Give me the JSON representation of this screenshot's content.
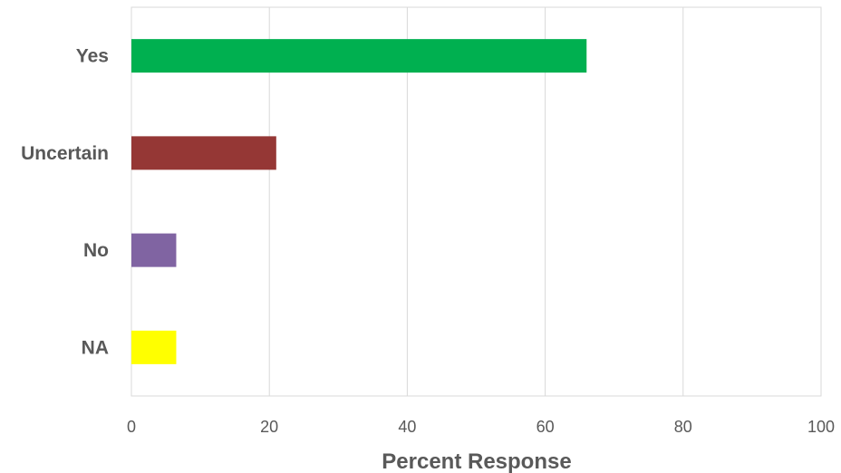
{
  "chart_data": {
    "type": "bar",
    "orientation": "horizontal",
    "categories": [
      "Yes",
      "Uncertain",
      "No",
      "NA"
    ],
    "values": [
      66,
      21,
      6.5,
      6.5
    ],
    "colors": [
      "#00b050",
      "#953735",
      "#8064a2",
      "#ffff00"
    ],
    "xlabel": "Percent Response",
    "ylabel": "",
    "title": "",
    "xlim": [
      0,
      100
    ],
    "xticks": [
      0,
      20,
      40,
      60,
      80,
      100
    ],
    "grid": true,
    "legend": "none"
  }
}
